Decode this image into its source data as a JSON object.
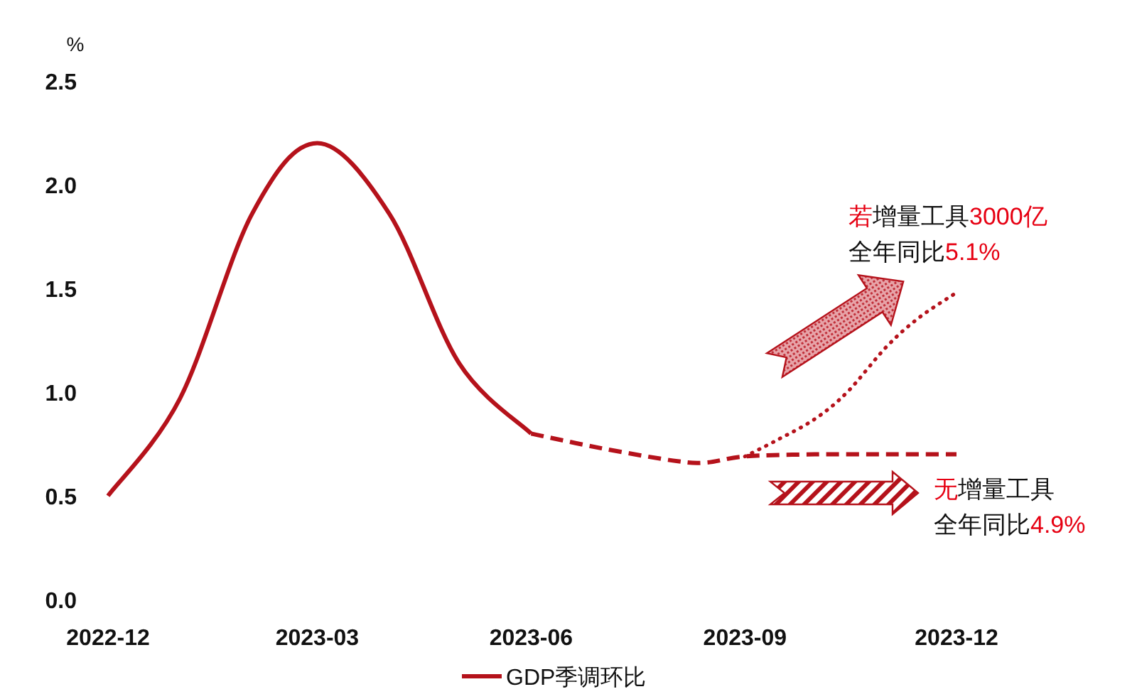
{
  "chart_data": {
    "type": "line",
    "ylabel": "%",
    "xlim": [
      "2022-12",
      "2023-12"
    ],
    "ylim": [
      0,
      2.5
    ],
    "xticks": [
      {
        "value": "2022-12",
        "label": "2022-12"
      },
      {
        "value": "2023-03",
        "label": "2023-03"
      },
      {
        "value": "2023-06",
        "label": "2023-06"
      },
      {
        "value": "2023-09",
        "label": "2023-09"
      },
      {
        "value": "2023-12",
        "label": "2023-12"
      }
    ],
    "yticks": [
      {
        "value": 0,
        "label": "0.0"
      },
      {
        "value": 0.5,
        "label": "0.5"
      },
      {
        "value": 1,
        "label": "1.0"
      },
      {
        "value": 1.5,
        "label": "1.5"
      },
      {
        "value": 2,
        "label": "2.0"
      },
      {
        "value": 2.5,
        "label": "2.5"
      }
    ],
    "series": [
      {
        "name": "GDP季调环比",
        "color": "#b5121b",
        "line_style": "solid",
        "x": [
          "2022-12-01",
          "2023-01-01",
          "2023-02-01",
          "2023-03-01",
          "2023-04-01",
          "2023-05-01",
          "2023-06-01"
        ],
        "values": [
          0.5,
          0.97,
          1.86,
          2.2,
          1.86,
          1.14,
          0.8
        ]
      },
      {
        "color": "#b5121b",
        "line_style": "dashed",
        "x": [
          "2023-06-01",
          "2023-07-01",
          "2023-08-01",
          "2023-08-15",
          "2023-09-01",
          "2023-10-01",
          "2023-11-01",
          "2023-12-01"
        ],
        "values": [
          0.8,
          0.73,
          0.67,
          0.66,
          0.69,
          0.7,
          0.7,
          0.7
        ]
      },
      {
        "color": "#b5121b",
        "line_style": "dotted",
        "x": [
          "2023-09-01",
          "2023-09-15",
          "2023-10-01",
          "2023-10-15",
          "2023-11-01",
          "2023-11-15",
          "2023-12-01"
        ],
        "values": [
          0.69,
          0.77,
          0.87,
          1.0,
          1.22,
          1.36,
          1.48
        ]
      }
    ],
    "annotations": [
      "**若**增量工具**3000亿**",
      "全年同比**5.1%**",
      "**无**增量工具",
      "全年同比**4.9%**"
    ],
    "legend": "bottom",
    "grid": false
  }
}
